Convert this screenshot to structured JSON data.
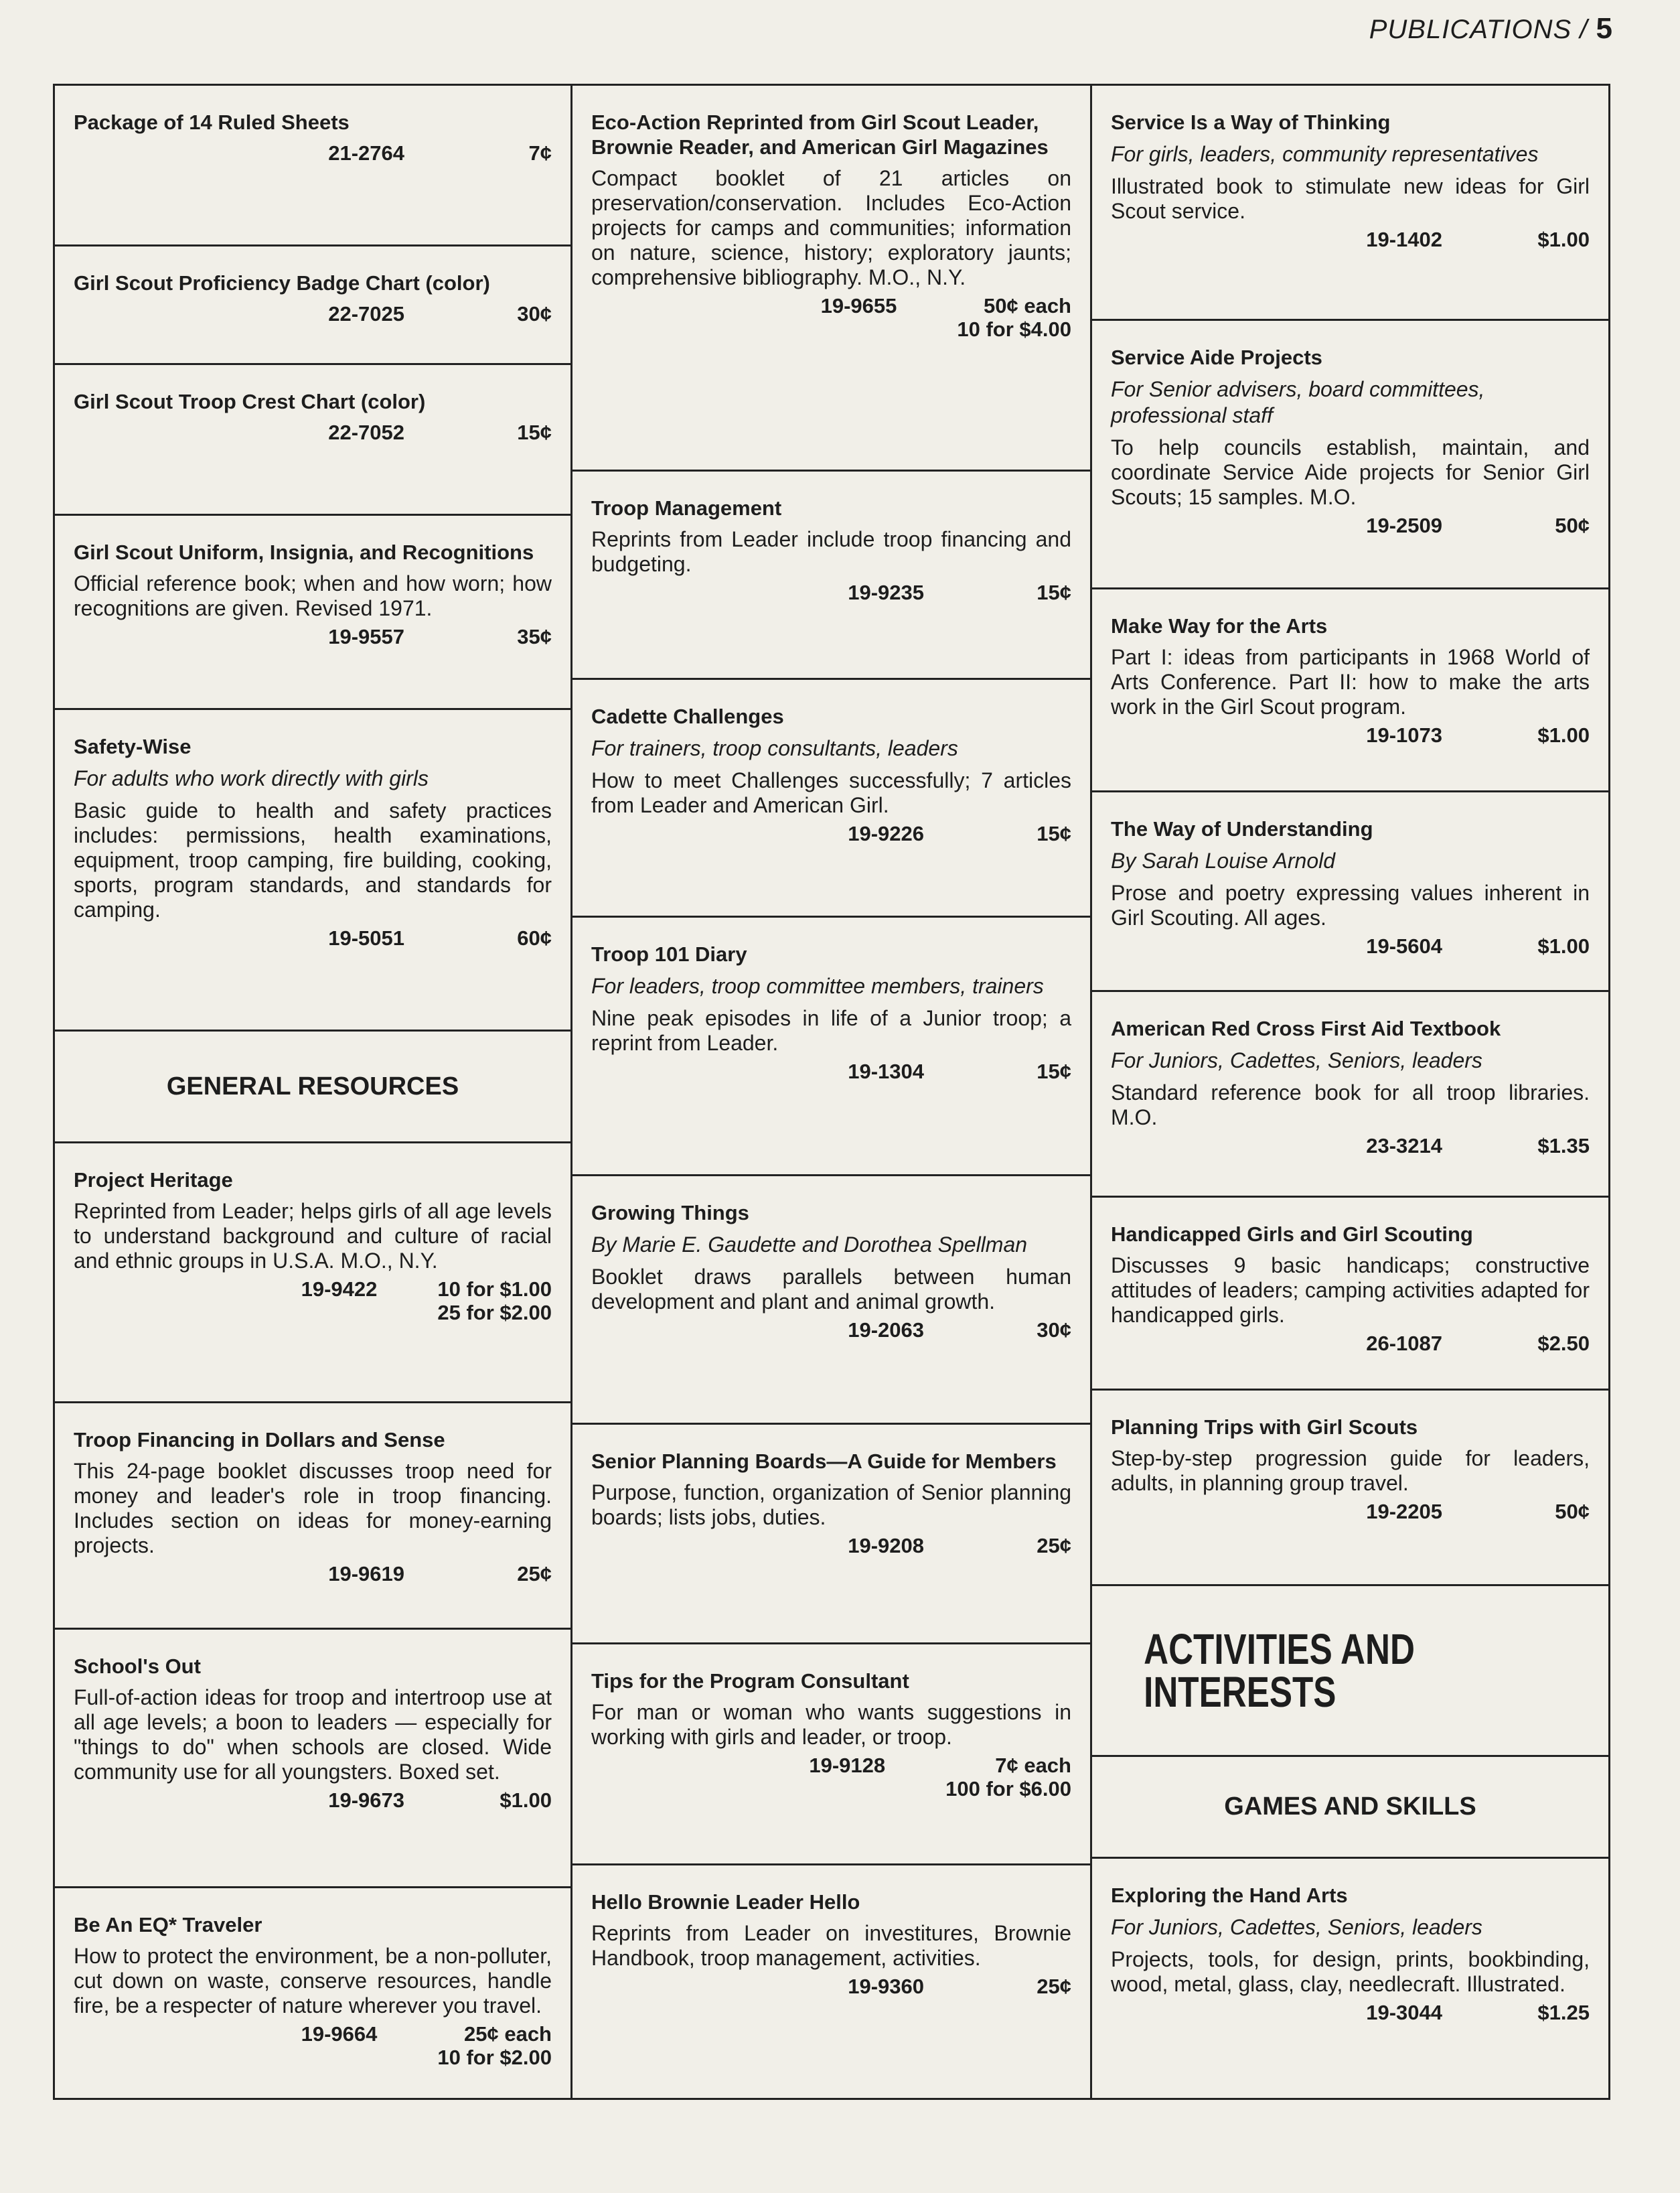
{
  "header": {
    "section": "PUBLICATIONS /",
    "page": "5"
  },
  "columns": [
    [
      {
        "title": "Package of 14 Ruled Sheets",
        "code": "21-2764",
        "price": [
          "7¢"
        ]
      },
      {
        "title": "Girl Scout Proficiency Badge Chart (color)",
        "code": "22-7025",
        "price": [
          "30¢"
        ]
      },
      {
        "title": "Girl Scout Troop Crest Chart (color)",
        "code": "22-7052",
        "price": [
          "15¢"
        ]
      },
      {
        "title": "Girl Scout Uniform, Insignia, and Recognitions",
        "desc": "Official reference book; when and how worn; how recognitions are given. Revised 1971.",
        "code": "19-9557",
        "price": [
          "35¢"
        ]
      },
      {
        "title": "Safety-Wise",
        "sub": "For adults who work directly with girls",
        "desc": "Basic guide to health and safety practices includes: permissions, health examinations, equipment, troop camping, fire building, cooking, sports, program standards, and standards for camping.",
        "code": "19-5051",
        "price": [
          "60¢"
        ]
      },
      {
        "section": "GENERAL RESOURCES"
      },
      {
        "title": "Project Heritage",
        "desc": "Reprinted from Leader; helps girls of all age levels to understand background and culture of racial and ethnic groups in U.S.A. M.O., N.Y.",
        "code": "19-9422",
        "price": [
          "10 for $1.00",
          "25 for $2.00"
        ]
      },
      {
        "title": "Troop Financing in Dollars and Sense",
        "desc": "This 24-page booklet discusses troop need for money and leader's role in troop financing. Includes section on ideas for money-earning projects.",
        "code": "19-9619",
        "price": [
          "25¢"
        ]
      },
      {
        "title": "School's Out",
        "desc": "Full-of-action ideas for troop and intertroop use at all age levels; a boon to leaders — especially for \"things to do\" when schools are closed. Wide community use for all youngsters. Boxed set.",
        "code": "19-9673",
        "price": [
          "$1.00"
        ]
      },
      {
        "title": "Be An EQ* Traveler",
        "desc": "How to protect the environment, be a non-polluter, cut down on waste, conserve resources, handle fire, be a respecter of nature wherever you travel.",
        "code": "19-9664",
        "price": [
          "25¢ each",
          "10 for $2.00"
        ]
      }
    ],
    [
      {
        "title": "Eco-Action Reprinted from Girl Scout Leader, Brownie Reader, and American Girl Magazines",
        "desc": "Compact booklet of 21 articles on preservation/conservation. Includes Eco-Action projects for camps and communities; information on nature, science, history; exploratory jaunts; comprehensive bibliography. M.O., N.Y.",
        "code": "19-9655",
        "price": [
          "50¢ each",
          "10 for $4.00"
        ]
      },
      {
        "title": "Troop Management",
        "desc": "Reprints from Leader include troop financing and budgeting.",
        "code": "19-9235",
        "price": [
          "15¢"
        ]
      },
      {
        "title": "Cadette Challenges",
        "sub": "For trainers, troop consultants, leaders",
        "desc": "How to meet Challenges successfully; 7 articles from Leader and American Girl.",
        "code": "19-9226",
        "price": [
          "15¢"
        ]
      },
      {
        "title": "Troop 101 Diary",
        "sub": "For leaders, troop committee members, trainers",
        "desc": "Nine peak episodes in life of a Junior troop; a reprint from Leader.",
        "code": "19-1304",
        "price": [
          "15¢"
        ]
      },
      {
        "title": "Growing Things",
        "sub": "By Marie E. Gaudette and Dorothea Spellman",
        "desc": "Booklet draws parallels between human development and plant and animal growth.",
        "code": "19-2063",
        "price": [
          "30¢"
        ]
      },
      {
        "title": "Senior Planning Boards—A Guide for Members",
        "desc": "Purpose, function, organization of Senior planning boards; lists jobs, duties.",
        "code": "19-9208",
        "price": [
          "25¢"
        ]
      },
      {
        "title": "Tips for the Program Consultant",
        "desc": "For man or woman who wants suggestions in working with girls and leader, or troop.",
        "code": "19-9128",
        "price": [
          "7¢ each",
          "100 for $6.00"
        ]
      },
      {
        "title": "Hello Brownie Leader Hello",
        "desc": "Reprints from Leader on investitures, Brownie Handbook, troop management, activities.",
        "code": "19-9360",
        "price": [
          "25¢"
        ]
      }
    ],
    [
      {
        "title": "Service Is a Way of Thinking",
        "sub": "For girls, leaders, community representatives",
        "desc": "Illustrated book to stimulate new ideas for Girl Scout service.",
        "code": "19-1402",
        "price": [
          "$1.00"
        ]
      },
      {
        "title": "Service Aide Projects",
        "sub": "For Senior advisers, board committees, professional staff",
        "desc": "To help councils establish, maintain, and coordinate Service Aide projects for Senior Girl Scouts; 15 samples. M.O.",
        "code": "19-2509",
        "price": [
          "50¢"
        ]
      },
      {
        "title": "Make Way for the Arts",
        "desc": "Part I: ideas from participants in 1968 World of Arts Conference. Part II: how to make the arts work in the Girl Scout program.",
        "code": "19-1073",
        "price": [
          "$1.00"
        ]
      },
      {
        "title": "The Way of Understanding",
        "sub": "By Sarah Louise Arnold",
        "desc": "Prose and poetry expressing values inherent in Girl Scouting. All ages.",
        "code": "19-5604",
        "price": [
          "$1.00"
        ]
      },
      {
        "title": "American Red Cross First Aid Textbook",
        "sub": "For Juniors, Cadettes, Seniors, leaders",
        "desc": "Standard reference book for all troop libraries. M.O.",
        "code": "23-3214",
        "price": [
          "$1.35"
        ]
      },
      {
        "title": "Handicapped Girls and Girl Scouting",
        "desc": "Discusses 9 basic handicaps; constructive attitudes of leaders; camping activities adapted for handicapped girls.",
        "code": "26-1087",
        "price": [
          "$2.50"
        ]
      },
      {
        "title": "Planning Trips with Girl Scouts",
        "desc": "Step-by-step progression guide for leaders, adults, in planning group travel.",
        "code": "19-2205",
        "price": [
          "50¢"
        ]
      },
      {
        "big": "ACTIVITIES AND INTERESTS"
      },
      {
        "section": "GAMES AND SKILLS"
      },
      {
        "title": "Exploring the Hand Arts",
        "sub": "For Juniors, Cadettes, Seniors, leaders",
        "desc": "Projects, tools, for design, prints, bookbinding, wood, metal, glass, clay, needlecraft. Illustrated.",
        "code": "19-3044",
        "price": [
          "$1.25"
        ]
      }
    ]
  ]
}
